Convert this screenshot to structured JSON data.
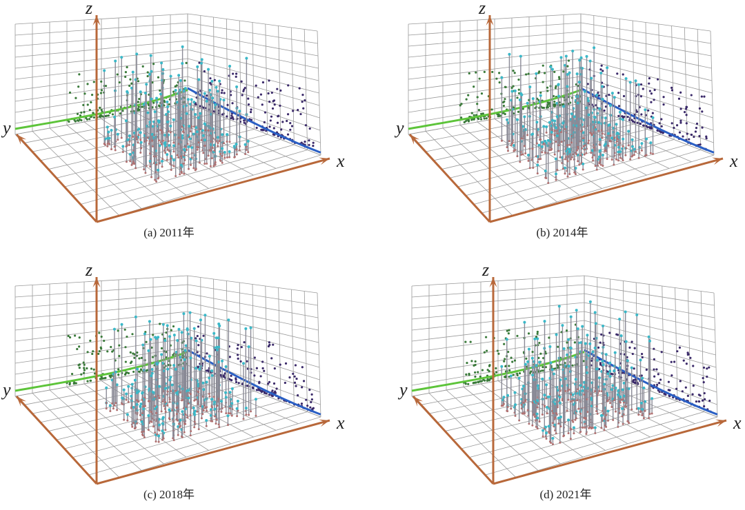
{
  "panels": [
    {
      "caption": "(a) 2011年",
      "axes": {
        "x": "x",
        "y": "y",
        "z": "z"
      }
    },
    {
      "caption": "(b) 2014年",
      "axes": {
        "x": "x",
        "y": "y",
        "z": "z"
      }
    },
    {
      "caption": "(c) 2018年",
      "axes": {
        "x": "x",
        "y": "y",
        "z": "z"
      }
    },
    {
      "caption": "(d) 2021年",
      "axes": {
        "x": "x",
        "y": "y",
        "z": "z"
      }
    }
  ]
}
